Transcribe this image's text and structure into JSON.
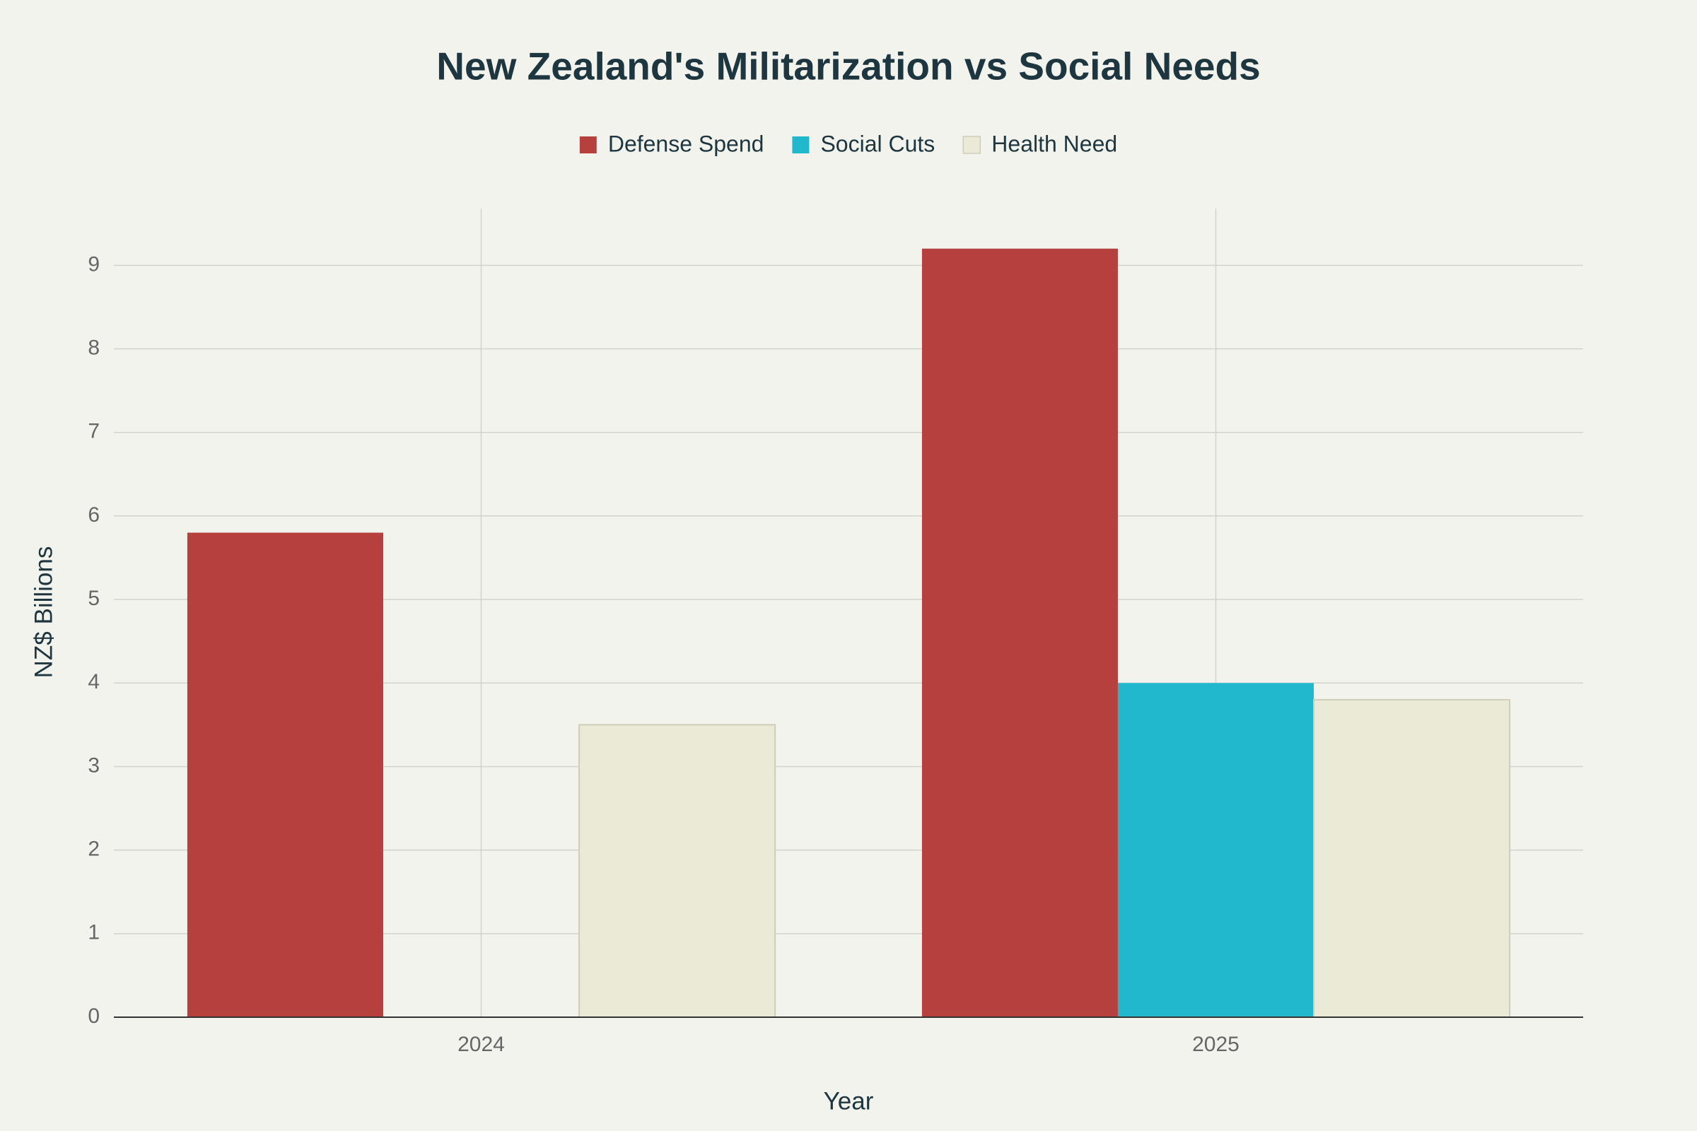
{
  "chart_data": {
    "type": "bar",
    "title": "New Zealand's Militarization vs Social Needs",
    "x_label": "Year",
    "y_label": "NZ$ Billions",
    "categories": [
      "2024",
      "2025"
    ],
    "series": [
      {
        "name": "Defense Spend",
        "color": "#b5403d",
        "values": [
          5.8,
          9.2
        ]
      },
      {
        "name": "Social Cuts",
        "color": "#21b8ce",
        "values": [
          0,
          4.0
        ]
      },
      {
        "name": "Health Need",
        "color": "#ebead6",
        "values": [
          3.5,
          3.8
        ]
      }
    ],
    "ylim": [
      0,
      9.68
    ],
    "yticks": [
      0,
      1,
      2,
      3,
      4,
      5,
      6,
      7,
      8,
      9
    ],
    "grid": true,
    "legend": "top"
  }
}
